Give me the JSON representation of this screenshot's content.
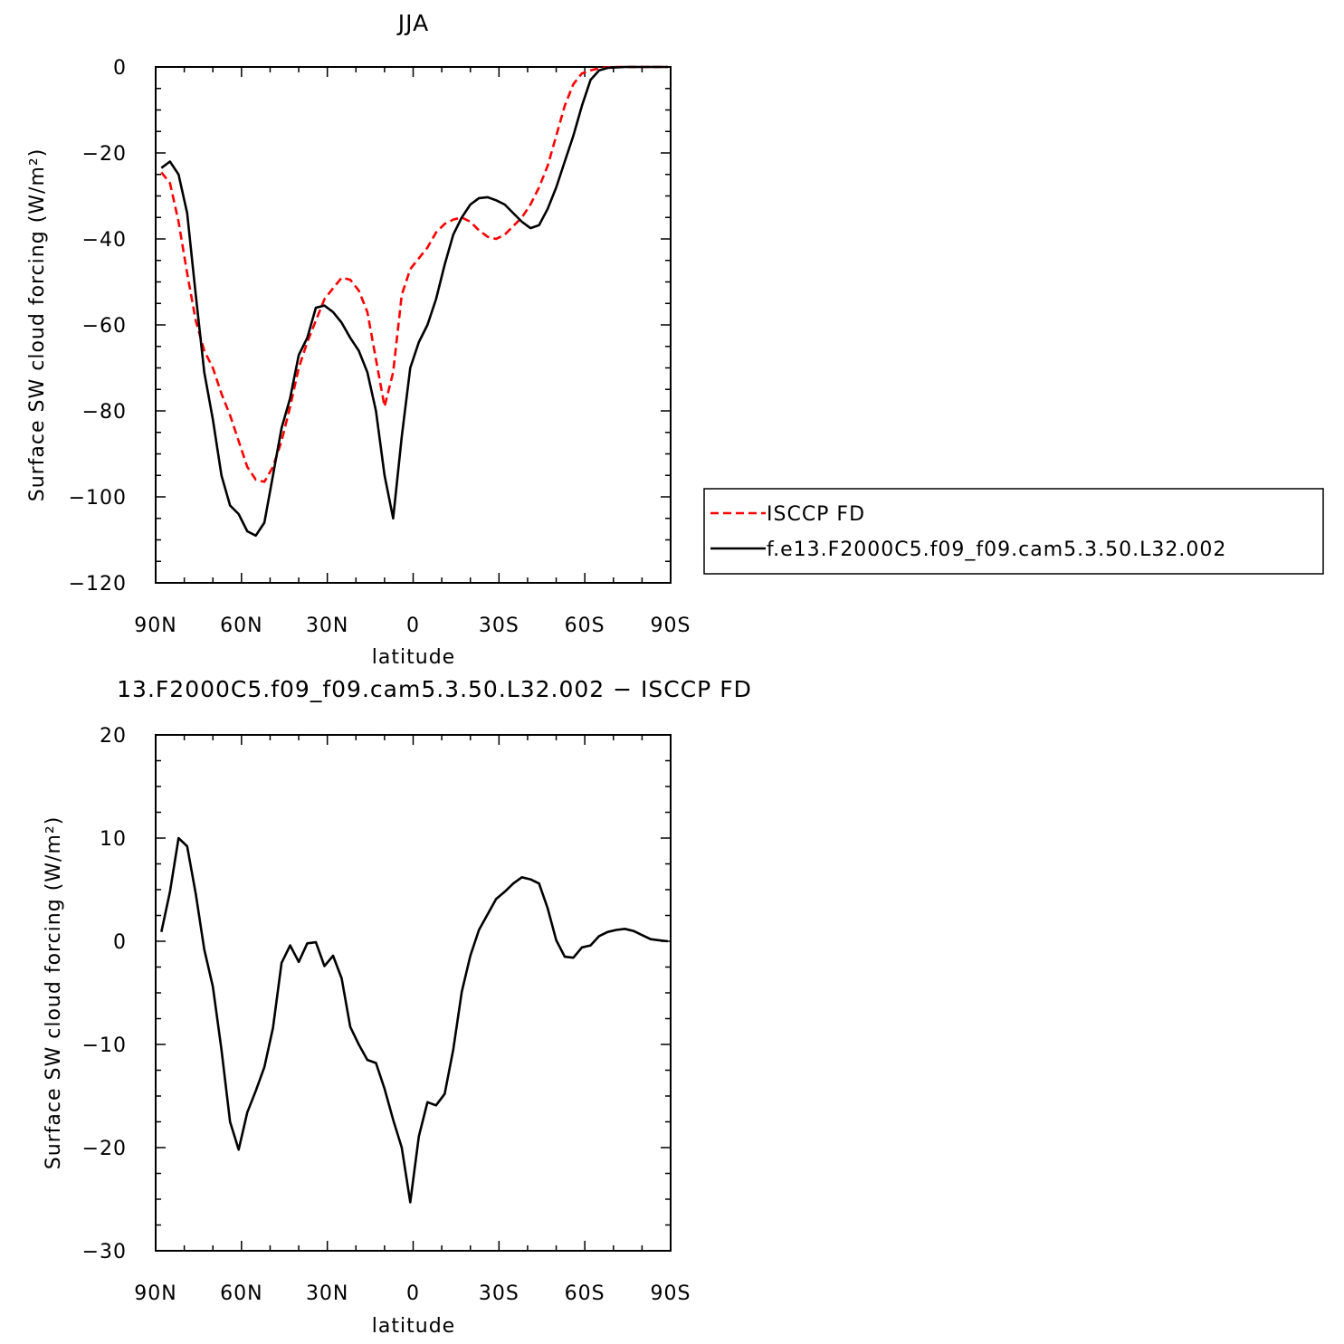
{
  "chart_data": [
    {
      "type": "line",
      "title": "JJA",
      "xlabel": "latitude",
      "ylabel": "Surface SW cloud forcing (W/m²)",
      "xlim": [
        90,
        -90
      ],
      "ylim": [
        -120,
        0
      ],
      "xticks": [
        90,
        60,
        30,
        0,
        -30,
        -60,
        -90
      ],
      "xticklabels": [
        "90N",
        "60N",
        "30N",
        "0",
        "30S",
        "60S",
        "90S"
      ],
      "yticks": [
        0,
        -20,
        -40,
        -60,
        -80,
        -100,
        -120
      ],
      "yticklabels": [
        "0",
        "−20",
        "−40",
        "−60",
        "−80",
        "−100",
        "−120"
      ],
      "grid": false,
      "legend": "right",
      "series": [
        {
          "name": "ISCCP FD",
          "color": "#ff0000",
          "dash": "dashed",
          "x": [
            88,
            85,
            82,
            79,
            76,
            73,
            70,
            67,
            64,
            61,
            58,
            55,
            52,
            49,
            46,
            43,
            40,
            37,
            34,
            31,
            28,
            25,
            22,
            19,
            16,
            13,
            10,
            7,
            4,
            1,
            -2,
            -5,
            -8,
            -11,
            -14,
            -17,
            -20,
            -23,
            -26,
            -29,
            -32,
            -35,
            -38,
            -41,
            -44,
            -47,
            -50,
            -53,
            -56,
            -59,
            -62,
            -65,
            -68,
            -71,
            -74,
            -77,
            -80,
            -83,
            -86,
            -89
          ],
          "y": [
            -24.5,
            -27,
            -36,
            -48,
            -59,
            -66,
            -70,
            -76,
            -81,
            -87,
            -93,
            -96,
            -96.5,
            -93,
            -87,
            -79,
            -70,
            -64,
            -59,
            -54,
            -51.5,
            -49,
            -49.5,
            -52,
            -57,
            -68,
            -79,
            -71,
            -53,
            -47,
            -44.5,
            -42,
            -38.5,
            -36.5,
            -35.5,
            -35,
            -36,
            -38,
            -39.5,
            -40,
            -39,
            -37,
            -35,
            -32,
            -28,
            -23,
            -16,
            -9,
            -4,
            -1.5,
            -0.8,
            -0.3,
            -0.1,
            0,
            0,
            0,
            0,
            0,
            0,
            0
          ]
        },
        {
          "name": "f.e13.F2000C5.f09_f09.cam5.3.50.L32.002",
          "color": "#000000",
          "dash": "solid",
          "x": [
            88,
            85,
            82,
            79,
            76,
            73,
            70,
            67,
            64,
            61,
            58,
            55,
            52,
            49,
            46,
            43,
            40,
            37,
            34,
            31,
            28,
            25,
            22,
            19,
            16,
            13,
            10,
            7,
            4,
            1,
            -2,
            -5,
            -8,
            -11,
            -14,
            -17,
            -20,
            -23,
            -26,
            -29,
            -32,
            -35,
            -38,
            -41,
            -44,
            -47,
            -50,
            -53,
            -56,
            -59,
            -62,
            -65,
            -68,
            -71,
            -74,
            -77,
            -80,
            -83,
            -86,
            -89
          ],
          "y": [
            -23.5,
            -22,
            -25,
            -34,
            -53,
            -71,
            -82,
            -95,
            -102,
            -104,
            -108,
            -109,
            -106,
            -95,
            -84,
            -77,
            -67,
            -63,
            -56,
            -55.5,
            -57,
            -59.5,
            -63,
            -66,
            -71,
            -80,
            -95,
            -105,
            -86,
            -70,
            -64,
            -60,
            -54,
            -46,
            -39,
            -35,
            -32,
            -30.5,
            -30.3,
            -31,
            -32,
            -34,
            -36,
            -37.5,
            -36.8,
            -33,
            -28,
            -22,
            -16,
            -9,
            -3,
            -0.8,
            -0.2,
            -0.1,
            0,
            0,
            0,
            0,
            0,
            0
          ]
        }
      ]
    },
    {
      "type": "line",
      "title": "13.F2000C5.f09_f09.cam5.3.50.L32.002 − ISCCP FD",
      "xlabel": "latitude",
      "ylabel": "Surface SW cloud forcing (W/m²)",
      "xlim": [
        90,
        -90
      ],
      "ylim": [
        -30,
        20
      ],
      "xticks": [
        90,
        60,
        30,
        0,
        -30,
        -60,
        -90
      ],
      "xticklabels": [
        "90N",
        "60N",
        "30N",
        "0",
        "30S",
        "60S",
        "90S"
      ],
      "yticks": [
        20,
        10,
        0,
        -10,
        -20,
        -30
      ],
      "yticklabels": [
        "20",
        "10",
        "0",
        "−10",
        "−20",
        "−30"
      ],
      "grid": false,
      "series": [
        {
          "color": "#000000",
          "dash": "solid",
          "x": [
            88,
            85,
            82,
            79,
            76,
            73,
            70,
            67,
            64,
            61,
            58,
            55,
            52,
            49,
            46,
            43,
            40,
            37,
            34,
            31,
            28,
            25,
            22,
            19,
            16,
            13,
            10,
            7,
            4,
            1,
            -2,
            -5,
            -8,
            -11,
            -14,
            -17,
            -20,
            -23,
            -26,
            -29,
            -32,
            -35,
            -38,
            -41,
            -44,
            -47,
            -50,
            -53,
            -56,
            -59,
            -62,
            -65,
            -68,
            -71,
            -74,
            -77,
            -80,
            -83,
            -86,
            -89
          ],
          "y": [
            0.9,
            4.8,
            10,
            9.2,
            4.6,
            -0.8,
            -4.4,
            -10.5,
            -17.5,
            -20.2,
            -16.6,
            -14.5,
            -12.2,
            -8.4,
            -2.1,
            -0.4,
            -2,
            -0.2,
            -0.1,
            -2.4,
            -1.4,
            -3.6,
            -8.3,
            -10,
            -11.5,
            -11.8,
            -14.3,
            -17.3,
            -20,
            -25.3,
            -18.9,
            -15.6,
            -15.9,
            -14.8,
            -10.5,
            -4.9,
            -1.4,
            1.1,
            2.6,
            4.1,
            4.8,
            5.6,
            6.2,
            6,
            5.6,
            3.2,
            0.1,
            -1.5,
            -1.6,
            -0.6,
            -0.4,
            0.5,
            0.9,
            1.1,
            1.2,
            1,
            0.6,
            0.2,
            0.1,
            0
          ]
        }
      ]
    }
  ]
}
